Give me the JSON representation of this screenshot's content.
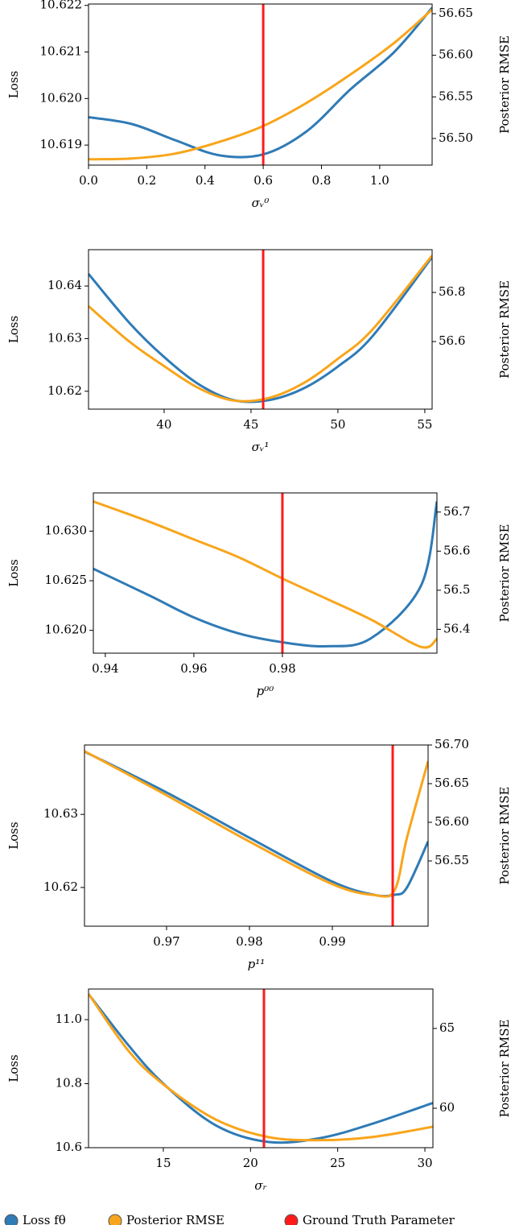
{
  "charts": [
    {
      "type": "line",
      "x_label": "σᵥ⁰",
      "y_label": "Loss",
      "y2_label": "Posterior RMSE",
      "x": [
        0,
        0.15,
        0.3,
        0.45,
        0.6,
        0.75,
        0.9,
        1.05,
        1.18
      ],
      "xlim": [
        0,
        1.18
      ],
      "xticks": [
        {
          "value": 0,
          "label": "0.0"
        },
        0.2,
        0.4,
        0.6,
        0.8,
        {
          "value": 1,
          "label": "1.0"
        }
      ],
      "ylim": [
        10.61857,
        10.62203
      ],
      "yticks": [
        10.619,
        {
          "value": 10.62,
          "label": "10.620"
        },
        10.621,
        10.622
      ],
      "y2lim": [
        56.468,
        56.6616
      ],
      "y2ticks": [
        {
          "value": 56.5,
          "label": "56.50"
        },
        56.55,
        {
          "value": 56.6,
          "label": "56.60"
        },
        56.65
      ],
      "series": [
        {
          "color": "#2f7bb6",
          "axis": "y",
          "values": [
            10.6196,
            10.61945,
            10.6191,
            10.61878,
            10.6188,
            10.6193,
            10.6202,
            10.621,
            10.62195
          ]
        },
        {
          "color": "#f8a51b",
          "axis": "y2",
          "values": [
            56.475,
            56.476,
            56.482,
            56.496,
            56.515,
            56.543,
            56.577,
            56.615,
            56.655
          ]
        }
      ],
      "truth": 0.6
    },
    {
      "type": "line",
      "x_label": "σᵥ¹",
      "y_label": "Loss",
      "y2_label": "Posterior RMSE",
      "x": [
        35.65,
        38,
        40,
        42,
        44,
        46,
        48,
        50,
        52,
        55.42
      ],
      "xlim": [
        35.65,
        55.42
      ],
      "xticks": [
        40,
        45,
        50,
        55
      ],
      "ylim": [
        10.6166,
        10.6469
      ],
      "yticks": [
        10.62,
        10.63,
        10.64
      ],
      "y2lim": [
        56.325,
        56.974
      ],
      "y2ticks": [
        56.6,
        56.8
      ],
      "series": [
        {
          "color": "#2f7bb6",
          "axis": "y",
          "values": [
            10.6423,
            10.633,
            10.6265,
            10.6213,
            10.6183,
            10.6183,
            10.6205,
            10.6247,
            10.6305,
            10.6455
          ]
        },
        {
          "color": "#f8a51b",
          "axis": "y2",
          "values": [
            56.744,
            56.6,
            56.5,
            56.41,
            56.36,
            56.37,
            56.43,
            56.53,
            56.65,
            56.95
          ]
        }
      ],
      "truth": 45.7
    },
    {
      "type": "line",
      "x_label": "p⁰⁰",
      "y_label": "Loss",
      "y2_label": "Posterior RMSE",
      "x": [
        0.9373,
        0.95,
        0.96,
        0.97,
        0.98,
        0.99,
        1.0,
        1.0113,
        1.0149
      ],
      "xlim": [
        0.9373,
        1.0149
      ],
      "xticks": [
        0.94,
        0.96,
        0.98
      ],
      "ylim": [
        10.6177,
        10.63385
      ],
      "yticks": [
        {
          "value": 10.62,
          "label": "10.620"
        },
        10.625,
        {
          "value": 10.63,
          "label": "10.630"
        }
      ],
      "y2lim": [
        56.339,
        56.749
      ],
      "y2ticks": [
        56.4,
        56.5,
        56.6,
        56.7
      ],
      "series": [
        {
          "color": "#2f7bb6",
          "axis": "y",
          "values": [
            10.6262,
            10.6235,
            10.6213,
            10.6197,
            10.6188,
            10.6184,
            10.6192,
            10.6245,
            10.633
          ]
        },
        {
          "color": "#f8a51b",
          "axis": "y2",
          "values": [
            56.727,
            56.675,
            56.63,
            56.585,
            56.53,
            56.478,
            56.425,
            56.355,
            56.376
          ]
        }
      ],
      "truth": 0.98
    },
    {
      "type": "line",
      "x_label": "p¹¹",
      "y_label": "Loss",
      "y2_label": "Posterior RMSE",
      "x": [
        0.9601,
        0.97,
        0.98,
        0.99,
        0.995,
        0.9975,
        0.999,
        1.00155
      ],
      "xlim": [
        0.9601,
        1.00155
      ],
      "xticks": [
        0.97,
        0.98,
        0.99
      ],
      "ylim": [
        10.6147,
        10.6395
      ],
      "yticks": [
        10.62,
        10.63
      ],
      "y2lim": [
        56.4656,
        56.7
      ],
      "y2ticks": [
        56.55,
        {
          "value": 56.6,
          "label": "56.60"
        },
        56.65,
        {
          "value": 56.7,
          "label": "56.70"
        }
      ],
      "series": [
        {
          "color": "#2f7bb6",
          "axis": "y",
          "values": [
            10.6386,
            10.633,
            10.6268,
            10.6208,
            10.619,
            10.619,
            10.62,
            10.6263
          ]
        },
        {
          "color": "#f8a51b",
          "axis": "y2",
          "values": [
            56.692,
            56.635,
            56.575,
            56.52,
            56.506,
            56.512,
            56.58,
            56.679
          ]
        }
      ],
      "truth": 0.99728
    },
    {
      "type": "line",
      "x_label": "σᵣ",
      "y_label": "Loss",
      "y2_label": "Posterior RMSE",
      "x": [
        10.71,
        13,
        15,
        18,
        21,
        24,
        27,
        30.46
      ],
      "xlim": [
        10.71,
        30.46
      ],
      "xticks": [
        15,
        20,
        25,
        30
      ],
      "ylim": [
        10.6,
        11.0957
      ],
      "yticks": [
        10.6,
        10.8,
        {
          "value": 11,
          "label": "11.0"
        }
      ],
      "y2lim": [
        57.53,
        67.47
      ],
      "y2ticks": [
        60,
        65
      ],
      "series": [
        {
          "color": "#2f7bb6",
          "axis": "y",
          "values": [
            11.08,
            10.92,
            10.8,
            10.67,
            10.618,
            10.63,
            10.675,
            10.74
          ]
        },
        {
          "color": "#f8a51b",
          "axis": "y2",
          "values": [
            67.17,
            63.6,
            61.5,
            59.3,
            58.2,
            58.0,
            58.2,
            58.84
          ]
        }
      ],
      "truth": 20.77
    }
  ],
  "truth_color": "#ff1a1a",
  "legend": [
    {
      "name": "Loss fθ",
      "color": "#2f7bb6"
    },
    {
      "name": "Posterior RMSE",
      "color": "#f8a51b"
    },
    {
      "name": "Ground Truth Parameter",
      "color": "#ff1a1a"
    }
  ]
}
